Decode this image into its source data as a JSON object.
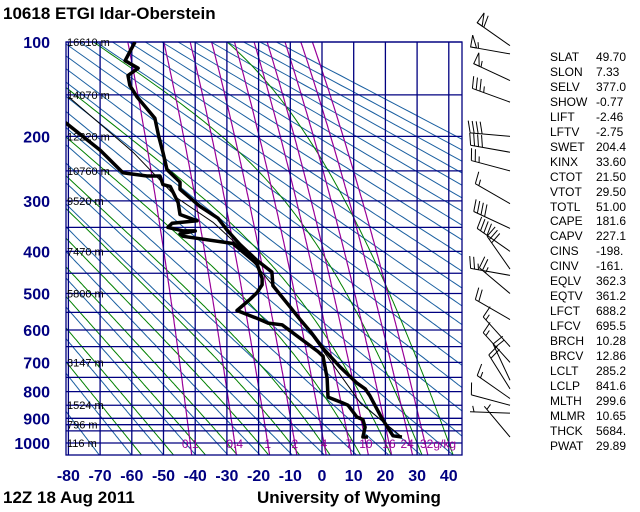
{
  "header": {
    "title": "10618 ETGI Idar-Oberstein"
  },
  "footer": {
    "time": "12Z 18 Aug 2011",
    "source": "University of Wyoming"
  },
  "colors": {
    "grid": "#000080",
    "dry_adiabat": "#1a5fa0",
    "moist_adiabat": "#008000",
    "mixing_ratio": "#990099",
    "sounding": "#000000",
    "axis_labels": "#000080"
  },
  "stats": [
    {
      "key": "SLAT",
      "value": "49.70"
    },
    {
      "key": "SLON",
      "value": "7.33"
    },
    {
      "key": "SELV",
      "value": "377.0"
    },
    {
      "key": "SHOW",
      "value": "-0.77"
    },
    {
      "key": "LIFT",
      "value": "-2.46"
    },
    {
      "key": "LFTV",
      "value": "-2.75"
    },
    {
      "key": "SWET",
      "value": "204.4"
    },
    {
      "key": "KINX",
      "value": "33.60"
    },
    {
      "key": "CTOT",
      "value": "21.50"
    },
    {
      "key": "VTOT",
      "value": "29.50"
    },
    {
      "key": "TOTL",
      "value": "51.00"
    },
    {
      "key": "CAPE",
      "value": "181.6"
    },
    {
      "key": "CAPV",
      "value": "227.1"
    },
    {
      "key": "CINS",
      "value": "-198."
    },
    {
      "key": "CINV",
      "value": "-161."
    },
    {
      "key": "EQLV",
      "value": "362.3"
    },
    {
      "key": "EQTV",
      "value": "361.2"
    },
    {
      "key": "LFCT",
      "value": "688.2"
    },
    {
      "key": "LFCV",
      "value": "695.5"
    },
    {
      "key": "BRCH",
      "value": "10.28"
    },
    {
      "key": "BRCV",
      "value": "12.86"
    },
    {
      "key": "LCLT",
      "value": "285.2"
    },
    {
      "key": "LCLP",
      "value": "841.6"
    },
    {
      "key": "MLTH",
      "value": "299.6"
    },
    {
      "key": "MLMR",
      "value": "10.65"
    },
    {
      "key": "THCK",
      "value": "5684."
    },
    {
      "key": "PWAT",
      "value": "29.89"
    }
  ],
  "chart_data": {
    "type": "line",
    "diagram": "Stuve thermodynamic diagram (pressure scaled as p^0.286, vertical isotherms)",
    "xlim": [
      -80,
      44
    ],
    "ylim": [
      1050,
      100
    ],
    "x_ticks": [
      -80,
      -70,
      -60,
      -50,
      -40,
      -30,
      -20,
      -10,
      0,
      10,
      20,
      30,
      40
    ],
    "y_tick_labels": [
      100,
      200,
      300,
      400,
      500,
      600,
      700,
      800,
      900,
      1000
    ],
    "isobars": [
      100,
      150,
      200,
      250,
      300,
      350,
      400,
      450,
      500,
      550,
      600,
      650,
      700,
      750,
      800,
      850,
      900,
      925,
      950,
      1000
    ],
    "height_labels": [
      {
        "p": 100,
        "label": "16610 m"
      },
      {
        "p": 150,
        "label": "14070 m"
      },
      {
        "p": 200,
        "label": "12220 m"
      },
      {
        "p": 250,
        "label": "10760 m"
      },
      {
        "p": 300,
        "label": "9520 m"
      },
      {
        "p": 400,
        "label": "7470 m"
      },
      {
        "p": 500,
        "label": "5800 m"
      },
      {
        "p": 700,
        "label": "3147 m"
      },
      {
        "p": 850,
        "label": "1524 m"
      },
      {
        "p": 925,
        "label": "796 m"
      },
      {
        "p": 1000,
        "label": "116 m"
      }
    ],
    "mixing_ratio_lines": [
      {
        "w": 0.1,
        "label": "0.1"
      },
      {
        "w": 0.4,
        "label": "0.4"
      },
      {
        "w": 1,
        "label": "1"
      },
      {
        "w": 2,
        "label": "2"
      },
      {
        "w": 4,
        "label": "4"
      },
      {
        "w": 7,
        "label": "7"
      },
      {
        "w": 10,
        "label": "10"
      },
      {
        "w": 16,
        "label": "16"
      },
      {
        "w": 24,
        "label": "24"
      },
      {
        "w": 32,
        "label": "32g/kg"
      }
    ],
    "dry_adiabats_theta_K": {
      "from": 200,
      "to": 500,
      "step": 10
    },
    "moist_adiabats_T1000_C": {
      "from": -60,
      "to": 40,
      "step": 10
    },
    "series": [
      {
        "id": "temperature",
        "points": [
          [
            975,
            25.2
          ],
          [
            970,
            22.4
          ],
          [
            900,
            18.9
          ],
          [
            815,
            15.1
          ],
          [
            790,
            13.6
          ],
          [
            770,
            11.0
          ],
          [
            715,
            5.7
          ],
          [
            655,
            0.3
          ],
          [
            610,
            -3.2
          ],
          [
            570,
            -6.9
          ],
          [
            535,
            -10.1
          ],
          [
            500,
            -13.5
          ],
          [
            480,
            -15.5
          ],
          [
            447,
            -15.8
          ],
          [
            420,
            -20.5
          ],
          [
            385,
            -25.9
          ],
          [
            355,
            -30
          ],
          [
            332,
            -32.8
          ],
          [
            310,
            -38.5
          ],
          [
            280,
            -44.8
          ],
          [
            268,
            -44.8
          ],
          [
            248,
            -48.9
          ],
          [
            222,
            -50.2
          ],
          [
            200,
            -51.5
          ],
          [
            177,
            -52.7
          ],
          [
            152,
            -58.4
          ],
          [
            140,
            -60.6
          ],
          [
            130,
            -61.2
          ],
          [
            123,
            -58
          ],
          [
            116,
            -62.1
          ],
          [
            100,
            -59
          ]
        ]
      },
      {
        "id": "dewpoint",
        "points": [
          [
            975,
            14.5
          ],
          [
            975,
            12.9
          ],
          [
            935,
            13.6
          ],
          [
            905,
            12.9
          ],
          [
            895,
            11
          ],
          [
            850,
            8.2
          ],
          [
            840,
            6.3
          ],
          [
            820,
            1.9
          ],
          [
            752,
            1.6
          ],
          [
            680,
            0.3
          ],
          [
            665,
            -1.3
          ],
          [
            585,
            -12.6
          ],
          [
            580,
            -17
          ],
          [
            570,
            -19.6
          ],
          [
            545,
            -26.8
          ],
          [
            515,
            -22.7
          ],
          [
            498,
            -20.5
          ],
          [
            478,
            -18.9
          ],
          [
            462,
            -18.9
          ],
          [
            428,
            -20.5
          ],
          [
            383,
            -28.1
          ],
          [
            368,
            -43.8
          ],
          [
            363,
            -44.8
          ],
          [
            357,
            -40
          ],
          [
            357,
            -43.8
          ],
          [
            350,
            -48.6
          ],
          [
            342,
            -47.3
          ],
          [
            337,
            -39.4
          ],
          [
            325,
            -44.8
          ],
          [
            303,
            -45.4
          ],
          [
            275,
            -47.9
          ],
          [
            272,
            -50.2
          ],
          [
            258,
            -51.1
          ],
          [
            258,
            -55.2
          ],
          [
            253,
            -62.8
          ],
          [
            219,
            -70
          ],
          [
            182,
            -81
          ]
        ]
      },
      {
        "id": "parcel",
        "points": [
          [
            975,
            25.2
          ],
          [
            842,
            12.1
          ],
          [
            700,
            3
          ],
          [
            570,
            -6.9
          ],
          [
            480,
            -15.5
          ],
          [
            397,
            -24.9
          ],
          [
            340,
            -34.4
          ],
          [
            295,
            -45.7
          ],
          [
            222,
            -59.6
          ],
          [
            152,
            -80
          ]
        ]
      }
    ],
    "wind_barbs_kt": [
      {
        "p": 103,
        "dir": 235,
        "speed": 60
      },
      {
        "p": 110,
        "dir": 260,
        "speed": 55
      },
      {
        "p": 135,
        "dir": 245,
        "speed": 55
      },
      {
        "p": 158,
        "dir": 250,
        "speed": 35
      },
      {
        "p": 200,
        "dir": 265,
        "speed": 40
      },
      {
        "p": 222,
        "dir": 260,
        "speed": 40
      },
      {
        "p": 250,
        "dir": 255,
        "speed": 25
      },
      {
        "p": 305,
        "dir": 240,
        "speed": 15
      },
      {
        "p": 352,
        "dir": 245,
        "speed": 40
      },
      {
        "p": 400,
        "dir": 235,
        "speed": 40
      },
      {
        "p": 440,
        "dir": 215,
        "speed": 30
      },
      {
        "p": 455,
        "dir": 260,
        "speed": 25
      },
      {
        "p": 500,
        "dir": 230,
        "speed": 25
      },
      {
        "p": 570,
        "dir": 240,
        "speed": 20
      },
      {
        "p": 650,
        "dir": 222,
        "speed": 15
      },
      {
        "p": 700,
        "dir": 222,
        "speed": 15
      },
      {
        "p": 760,
        "dir": 205,
        "speed": 20
      },
      {
        "p": 790,
        "dir": 212,
        "speed": 20
      },
      {
        "p": 825,
        "dir": 235,
        "speed": 15
      },
      {
        "p": 850,
        "dir": 255,
        "speed": 10
      },
      {
        "p": 880,
        "dir": 268,
        "speed": 5
      },
      {
        "p": 975,
        "dir": 220,
        "speed": 5
      }
    ]
  }
}
